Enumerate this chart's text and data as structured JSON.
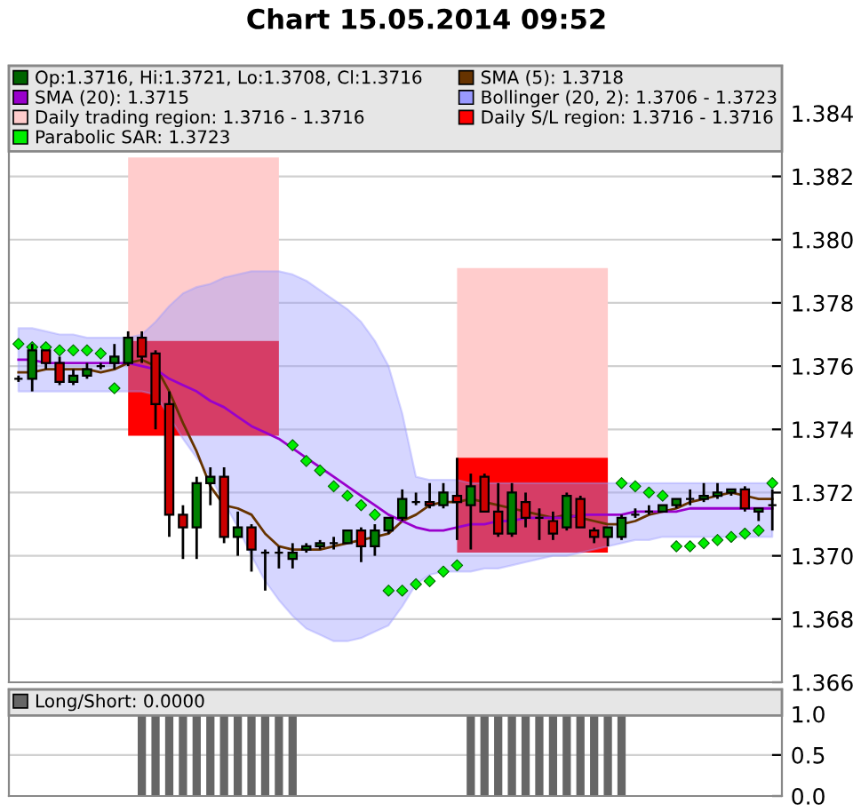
{
  "chart_data": [
    {
      "type": "candlestick",
      "title": "Chart 15.05.2014 09:52",
      "categories": [
        null,
        null,
        null,
        null,
        null,
        null,
        null,
        null,
        null,
        null,
        null,
        null,
        null,
        null,
        null,
        null,
        null,
        null,
        null,
        null,
        null,
        null,
        null,
        null,
        null,
        null,
        null,
        null,
        null,
        null,
        null,
        null,
        null,
        null,
        null,
        null,
        null,
        null,
        null,
        null,
        null,
        null,
        null,
        null,
        null,
        null,
        null,
        null,
        null,
        null,
        null,
        null,
        null,
        null,
        null,
        null
      ],
      "ylim": [
        1.366,
        1.3855
      ],
      "yticks": [
        1.366,
        1.368,
        {
          "value": 1.37,
          "label": "1.370"
        },
        1.372,
        1.374,
        1.376,
        1.378,
        {
          "value": 1.38,
          "label": "1.380"
        },
        1.382,
        1.384
      ],
      "grid": "y",
      "legend": "top",
      "tick_labels": "y",
      "series": [
        {
          "type": "candlestick",
          "name": "Op:1.3716, Hi:1.3721, Lo:1.3708, Cl:1.3716",
          "color": "#006400",
          "colors": [
            "#000000",
            "#008000",
            "#cc0000",
            "#cc0000",
            "#008000",
            "#008000",
            "#000000",
            "#008000",
            "#008000",
            "#cc0000",
            "#cc0000",
            "#cc0000",
            "#cc0000",
            "#008000",
            "#008000",
            "#cc0000",
            "#008000",
            "#cc0000",
            "#000000",
            "#000000",
            "#008000",
            "#008000",
            "#008000",
            "#000000",
            "#008000",
            "#cc0000",
            "#008000",
            "#008000",
            "#008000",
            "#000000",
            "#cc0000",
            "#008000",
            "#cc0000",
            "#008000",
            "#cc0000",
            "#cc0000",
            "#008000",
            "#cc0000",
            "#000000",
            "#cc0000",
            "#008000",
            "#cc0000",
            "#cc0000",
            "#008000",
            "#008000",
            "#000000",
            "#000000",
            "#008000",
            "#008000",
            "#000000",
            "#008000",
            "#008000",
            "#008000",
            "#cc0000",
            "#008000",
            "#000000"
          ],
          "ohlc": [
            [
              1.3756,
              1.3757,
              1.3755,
              1.3756
            ],
            [
              1.3756,
              1.3767,
              1.3752,
              1.3765
            ],
            [
              1.3765,
              1.3765,
              1.3759,
              1.3761
            ],
            [
              1.3761,
              1.3763,
              1.3754,
              1.3755
            ],
            [
              1.3755,
              1.3759,
              1.3754,
              1.3757
            ],
            [
              1.3757,
              1.3761,
              1.3756,
              1.3759
            ],
            [
              1.376,
              1.3761,
              1.3759,
              1.376
            ],
            [
              1.3761,
              1.3767,
              1.3759,
              1.3763
            ],
            [
              1.3761,
              1.3771,
              1.376,
              1.3769
            ],
            [
              1.3769,
              1.3771,
              1.3761,
              1.3763
            ],
            [
              1.3764,
              1.3765,
              1.374,
              1.3748
            ],
            [
              1.3748,
              1.3752,
              1.3706,
              1.3713
            ],
            [
              1.3713,
              1.3716,
              1.3699,
              1.3709
            ],
            [
              1.3709,
              1.3725,
              1.3699,
              1.3723
            ],
            [
              1.3723,
              1.3728,
              1.3716,
              1.3725
            ],
            [
              1.3725,
              1.3728,
              1.3704,
              1.3706
            ],
            [
              1.3706,
              1.3714,
              1.37,
              1.3709
            ],
            [
              1.3709,
              1.371,
              1.3695,
              1.3702
            ],
            [
              1.3701,
              1.3702,
              1.3689,
              1.3701
            ],
            [
              1.3701,
              1.3703,
              1.3696,
              1.3701
            ],
            [
              1.3699,
              1.3704,
              1.3696,
              1.3701
            ],
            [
              1.3702,
              1.3704,
              1.3701,
              1.3703
            ],
            [
              1.3703,
              1.3705,
              1.3702,
              1.3704
            ],
            [
              1.3704,
              1.3706,
              1.3702,
              1.3704
            ],
            [
              1.3704,
              1.3708,
              1.3704,
              1.3708
            ],
            [
              1.3708,
              1.3709,
              1.3698,
              1.3703
            ],
            [
              1.3703,
              1.371,
              1.37,
              1.3708
            ],
            [
              1.3708,
              1.3712,
              1.3707,
              1.3712
            ],
            [
              1.3712,
              1.3721,
              1.3711,
              1.3718
            ],
            [
              1.3717,
              1.372,
              1.3716,
              1.3717
            ],
            [
              1.3717,
              1.3723,
              1.3715,
              1.3716
            ],
            [
              1.3716,
              1.3723,
              1.3715,
              1.372
            ],
            [
              1.3719,
              1.3731,
              1.3705,
              1.3717
            ],
            [
              1.3716,
              1.3726,
              1.3702,
              1.3722
            ],
            [
              1.3725,
              1.3726,
              1.3714,
              1.3714
            ],
            [
              1.3714,
              1.3723,
              1.3706,
              1.3707
            ],
            [
              1.3707,
              1.3723,
              1.3706,
              1.372
            ],
            [
              1.3717,
              1.372,
              1.3709,
              1.3712
            ],
            [
              1.3712,
              1.3715,
              1.3705,
              1.3712
            ],
            [
              1.3711,
              1.3714,
              1.3705,
              1.3707
            ],
            [
              1.3709,
              1.372,
              1.3708,
              1.3719
            ],
            [
              1.3718,
              1.3719,
              1.3709,
              1.3709
            ],
            [
              1.3708,
              1.3709,
              1.3704,
              1.3706
            ],
            [
              1.3706,
              1.3709,
              1.3703,
              1.3709
            ],
            [
              1.3706,
              1.3713,
              1.3705,
              1.3712
            ],
            [
              1.3713,
              1.3715,
              1.3712,
              1.3713
            ],
            [
              1.3714,
              1.3716,
              1.3713,
              1.3714
            ],
            [
              1.3714,
              1.3716,
              1.3714,
              1.3716
            ],
            [
              1.3716,
              1.3718,
              1.3715,
              1.3718
            ],
            [
              1.3718,
              1.3721,
              1.3716,
              1.3718
            ],
            [
              1.3718,
              1.3723,
              1.3717,
              1.3719
            ],
            [
              1.3719,
              1.3723,
              1.3718,
              1.372
            ],
            [
              1.372,
              1.3721,
              1.3719,
              1.3721
            ],
            [
              1.3721,
              1.3722,
              1.3714,
              1.3715
            ],
            [
              1.3714,
              1.3715,
              1.3711,
              1.3715
            ],
            [
              1.3716,
              1.3721,
              1.3708,
              1.3716
            ]
          ]
        },
        {
          "type": "line",
          "name": "SMA (5): 1.3718",
          "color": "#663300",
          "values": [
            1.3758,
            1.3758,
            1.3759,
            1.3759,
            1.3759,
            1.3759,
            1.3758,
            1.3759,
            1.3761,
            1.3762,
            1.376,
            1.3752,
            1.3742,
            1.3733,
            1.3722,
            1.3716,
            1.3715,
            1.3713,
            1.3707,
            1.3703,
            1.3702,
            1.3702,
            1.3702,
            1.3703,
            1.3704,
            1.3705,
            1.3706,
            1.3707,
            1.3711,
            1.3713,
            1.3716,
            1.3717,
            1.3717,
            1.3718,
            1.3717,
            1.3716,
            1.3715,
            1.3714,
            1.3713,
            1.3712,
            1.3713,
            1.3712,
            1.3711,
            1.371,
            1.371,
            1.3711,
            1.3713,
            1.3714,
            1.3715,
            1.3717,
            1.3718,
            1.3719,
            1.372,
            1.3719,
            1.3718,
            1.3718
          ]
        },
        {
          "type": "line",
          "name": "SMA (20): 1.3715",
          "color": "#9900cc",
          "values": [
            1.3762,
            1.3762,
            1.3761,
            1.3761,
            1.3761,
            1.3761,
            1.3761,
            1.3761,
            1.3761,
            1.376,
            1.3759,
            1.3756,
            1.3754,
            1.3752,
            1.3749,
            1.3747,
            1.3744,
            1.3741,
            1.3739,
            1.3737,
            1.3734,
            1.3731,
            1.3728,
            1.3725,
            1.3722,
            1.3719,
            1.3716,
            1.3713,
            1.3711,
            1.3709,
            1.3708,
            1.3708,
            1.3709,
            1.371,
            1.371,
            1.3711,
            1.3711,
            1.3712,
            1.3712,
            1.3712,
            1.3712,
            1.3713,
            1.3713,
            1.3713,
            1.3713,
            1.3714,
            1.3714,
            1.3714,
            1.3714,
            1.3715,
            1.3715,
            1.3715,
            1.3715,
            1.3715,
            1.3715,
            1.3715
          ]
        },
        {
          "type": "area",
          "name": "Bollinger (20, 2): 1.3706 - 1.3723",
          "color": "#9999ff",
          "lower": [
            1.3752,
            1.3752,
            1.3752,
            1.3752,
            1.3752,
            1.3752,
            1.3752,
            1.3752,
            1.3752,
            1.3752,
            1.3751,
            1.3744,
            1.3737,
            1.3731,
            1.3725,
            1.3717,
            1.3709,
            1.37,
            1.3692,
            1.3686,
            1.3681,
            1.3677,
            1.3675,
            1.3673,
            1.3673,
            1.3674,
            1.3676,
            1.3678,
            1.3684,
            1.3691,
            1.3694,
            1.3695,
            1.3695,
            1.3695,
            1.3696,
            1.3696,
            1.3697,
            1.3698,
            1.3699,
            1.37,
            1.37,
            1.3701,
            1.3702,
            1.3703,
            1.3704,
            1.3705,
            1.3705,
            1.3706,
            1.3706,
            1.3706,
            1.3706,
            1.3706,
            1.3706,
            1.3706,
            1.3706,
            1.3706
          ],
          "upper": [
            1.3772,
            1.3772,
            1.3771,
            1.377,
            1.377,
            1.3769,
            1.3769,
            1.3769,
            1.3769,
            1.377,
            1.3774,
            1.3779,
            1.3783,
            1.3785,
            1.3786,
            1.3788,
            1.3789,
            1.379,
            1.379,
            1.379,
            1.3789,
            1.3787,
            1.3784,
            1.3781,
            1.3778,
            1.3774,
            1.3768,
            1.376,
            1.3745,
            1.3725,
            1.3724,
            1.3724,
            1.3724,
            1.3723,
            1.3723,
            1.3723,
            1.3723,
            1.3723,
            1.3723,
            1.3723,
            1.3723,
            1.3723,
            1.3723,
            1.3723,
            1.3723,
            1.3723,
            1.3723,
            1.3723,
            1.3723,
            1.3723,
            1.3723,
            1.3723,
            1.3723,
            1.3723,
            1.3723,
            1.3723
          ],
          "values": [
            null,
            null,
            null,
            null,
            null,
            null,
            null,
            null,
            null,
            null,
            null,
            null,
            null,
            null,
            null,
            null,
            null,
            null,
            null,
            null,
            null,
            null,
            null,
            null,
            null,
            null,
            null,
            null,
            null,
            null,
            null,
            null,
            null,
            null,
            null,
            null,
            null,
            null,
            null,
            null,
            null,
            null,
            null,
            null,
            null,
            null,
            null,
            null,
            null,
            null,
            null,
            null,
            null,
            null,
            null,
            null
          ]
        },
        {
          "type": "area",
          "name": "Daily trading region: 1.3716 - 1.3716",
          "color": "#ffcccc",
          "lower": [
            null,
            null,
            null,
            null,
            null,
            null,
            null,
            null,
            1.3768,
            1.3768,
            1.3768,
            1.3768,
            1.3768,
            1.3768,
            1.3768,
            1.3768,
            1.3768,
            1.3768,
            1.3768,
            1.3768,
            null,
            null,
            null,
            null,
            null,
            null,
            null,
            null,
            null,
            null,
            null,
            null,
            1.3731,
            1.3731,
            1.3731,
            1.3731,
            1.3731,
            1.3731,
            1.3731,
            1.3731,
            1.3731,
            1.3731,
            1.3731,
            1.3731,
            null,
            null,
            null,
            null,
            null,
            null,
            null,
            null,
            null,
            null,
            null,
            null
          ],
          "upper": [
            null,
            null,
            null,
            null,
            null,
            null,
            null,
            null,
            1.3826,
            1.3826,
            1.3826,
            1.3826,
            1.3826,
            1.3826,
            1.3826,
            1.3826,
            1.3826,
            1.3826,
            1.3826,
            1.3826,
            null,
            null,
            null,
            null,
            null,
            null,
            null,
            null,
            null,
            null,
            null,
            null,
            1.3791,
            1.3791,
            1.3791,
            1.3791,
            1.3791,
            1.3791,
            1.3791,
            1.3791,
            1.3791,
            1.3791,
            1.3791,
            1.3791,
            null,
            null,
            null,
            null,
            null,
            null,
            null,
            null,
            null,
            null,
            null,
            null
          ],
          "values": [
            null,
            null,
            null,
            null,
            null,
            null,
            null,
            null,
            null,
            null,
            null,
            null,
            null,
            null,
            null,
            null,
            null,
            null,
            null,
            null,
            null,
            null,
            null,
            null,
            null,
            null,
            null,
            null,
            null,
            null,
            null,
            null,
            null,
            null,
            null,
            null,
            null,
            null,
            null,
            null,
            null,
            null,
            null,
            null,
            null,
            null,
            null,
            null,
            null,
            null,
            null,
            null,
            null,
            null,
            null,
            null
          ]
        },
        {
          "type": "area",
          "name": "Daily S/L region: 1.3716 - 1.3716",
          "color": "#ff0000",
          "lower": [
            null,
            null,
            null,
            null,
            null,
            null,
            null,
            null,
            1.3738,
            1.3738,
            1.3738,
            1.3738,
            1.3738,
            1.3738,
            1.3738,
            1.3738,
            1.3738,
            1.3738,
            1.3738,
            1.3738,
            null,
            null,
            null,
            null,
            null,
            null,
            null,
            null,
            null,
            null,
            null,
            null,
            1.3701,
            1.3701,
            1.3701,
            1.3701,
            1.3701,
            1.3701,
            1.3701,
            1.3701,
            1.3701,
            1.3701,
            1.3701,
            1.3701,
            null,
            null,
            null,
            null,
            null,
            null,
            null,
            null,
            null,
            null,
            null,
            null
          ],
          "upper": [
            null,
            null,
            null,
            null,
            null,
            null,
            null,
            null,
            1.3768,
            1.3768,
            1.3768,
            1.3768,
            1.3768,
            1.3768,
            1.3768,
            1.3768,
            1.3768,
            1.3768,
            1.3768,
            1.3768,
            null,
            null,
            null,
            null,
            null,
            null,
            null,
            null,
            null,
            null,
            null,
            null,
            1.3731,
            1.3731,
            1.3731,
            1.3731,
            1.3731,
            1.3731,
            1.3731,
            1.3731,
            1.3731,
            1.3731,
            1.3731,
            1.3731,
            null,
            null,
            null,
            null,
            null,
            null,
            null,
            null,
            null,
            null,
            null,
            null
          ],
          "values": [
            null,
            null,
            null,
            null,
            null,
            null,
            null,
            null,
            null,
            null,
            null,
            null,
            null,
            null,
            null,
            null,
            null,
            null,
            null,
            null,
            null,
            null,
            null,
            null,
            null,
            null,
            null,
            null,
            null,
            null,
            null,
            null,
            null,
            null,
            null,
            null,
            null,
            null,
            null,
            null,
            null,
            null,
            null,
            null,
            null,
            null,
            null,
            null,
            null,
            null,
            null,
            null,
            null,
            null,
            null,
            null
          ]
        },
        {
          "type": "scatter",
          "name": "Parabolic SAR: 1.3723",
          "color": "#00ee00",
          "marker": "diamond",
          "values": [
            1.3767,
            1.3766,
            1.3766,
            1.3765,
            1.3765,
            1.3765,
            1.3764,
            1.3753,
            null,
            null,
            null,
            null,
            null,
            null,
            null,
            null,
            null,
            null,
            null,
            null,
            1.3735,
            1.373,
            1.3727,
            1.3722,
            1.3719,
            1.3716,
            1.3713,
            1.3689,
            1.3689,
            1.3691,
            1.3692,
            1.3695,
            1.3697,
            null,
            null,
            null,
            null,
            null,
            null,
            null,
            null,
            null,
            null,
            null,
            1.3723,
            1.3722,
            1.372,
            1.3719,
            1.3703,
            1.3703,
            1.3704,
            1.3705,
            1.3706,
            1.3707,
            1.3708,
            1.3723
          ]
        }
      ]
    },
    {
      "type": "bar",
      "categories": [
        null,
        null,
        null,
        null,
        null,
        null,
        null,
        null,
        null,
        null,
        null,
        null,
        null,
        null,
        null,
        null,
        null,
        null,
        null,
        null,
        null,
        null,
        null,
        null,
        null,
        null,
        null,
        null,
        null,
        null,
        null,
        null,
        null,
        null,
        null,
        null,
        null,
        null,
        null,
        null,
        null,
        null,
        null,
        null,
        null,
        null,
        null,
        null,
        null,
        null,
        null,
        null,
        null,
        null,
        null,
        null
      ],
      "ylim": [
        0,
        1.3
      ],
      "yticks": [
        {
          "value": 0,
          "label": "0.0"
        },
        {
          "value": 0.5,
          "label": "0.5"
        },
        {
          "value": 1,
          "label": "1.0"
        }
      ],
      "grid": "y",
      "legend": "top",
      "tick_labels": "y",
      "series": [
        {
          "name": "Long/Short: 0.0000",
          "color": "#666666",
          "values": [
            0,
            0,
            0,
            0,
            0,
            0,
            0,
            0,
            0,
            1,
            1,
            1,
            1,
            1,
            1,
            1,
            1,
            1,
            1,
            1,
            1,
            0,
            0,
            0,
            0,
            0,
            0,
            0,
            0,
            0,
            0,
            0,
            0,
            1,
            1,
            1,
            1,
            1,
            1,
            1,
            1,
            1,
            1,
            1,
            1,
            0,
            0,
            0,
            0,
            0,
            0,
            0,
            0,
            0,
            0,
            0
          ]
        }
      ]
    }
  ]
}
